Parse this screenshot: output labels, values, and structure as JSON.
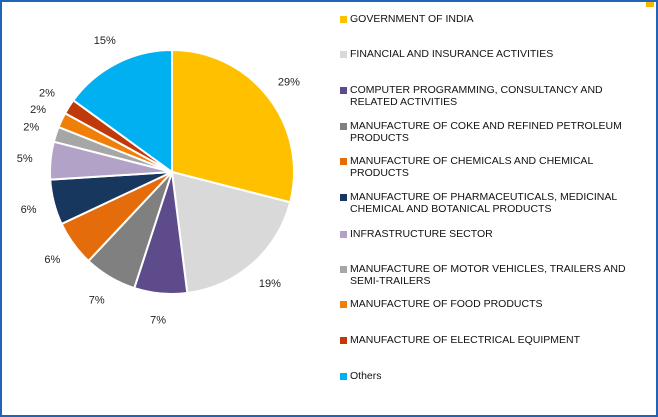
{
  "chart_data": {
    "type": "pie",
    "slices": [
      {
        "label": "GOVERNMENT OF INDIA",
        "value": 29,
        "text": "29%",
        "color": "#ffc000"
      },
      {
        "label": "FINANCIAL AND INSURANCE ACTIVITIES",
        "value": 19,
        "text": "19%",
        "color": "#d9d9d9"
      },
      {
        "label": "COMPUTER PROGRAMMING, CONSULTANCY AND RELATED ACTIVITIES",
        "value": 7,
        "text": "7%",
        "color": "#5e4b8b"
      },
      {
        "label": "MANUFACTURE OF COKE AND REFINED PETROLEUM PRODUCTS",
        "value": 7,
        "text": "7%",
        "color": "#808080"
      },
      {
        "label": "MANUFACTURE OF CHEMICALS AND CHEMICAL PRODUCTS",
        "value": 6,
        "text": "6%",
        "color": "#e46c0a"
      },
      {
        "label": "MANUFACTURE OF PHARMACEUTICALS, MEDICINAL CHEMICAL AND BOTANICAL PRODUCTS",
        "value": 6,
        "text": "6%",
        "color": "#17375e"
      },
      {
        "label": "INFRASTRUCTURE SECTOR",
        "value": 5,
        "text": "5%",
        "color": "#b3a2c7"
      },
      {
        "label": "MANUFACTURE OF MOTOR VEHICLES, TRAILERS AND SEMI-TRAILERS",
        "value": 2,
        "text": "2%",
        "color": "#a6a6a6"
      },
      {
        "label": "MANUFACTURE OF FOOD PRODUCTS",
        "value": 2,
        "text": "2%",
        "color": "#f07f09"
      },
      {
        "label": "MANUFACTURE OF ELECTRICAL EQUIPMENT",
        "value": 2,
        "text": "2%",
        "color": "#c0390b"
      },
      {
        "label": "Others",
        "value": 15,
        "text": "15%",
        "color": "#00b0f0"
      }
    ],
    "legend_position": "right"
  },
  "legend_lines": [
    [
      "GOVERNMENT OF INDIA"
    ],
    [
      "FINANCIAL AND INSURANCE ACTIVITIES"
    ],
    [
      "COMPUTER PROGRAMMING, CONSULTANCY AND",
      "RELATED ACTIVITIES"
    ],
    [
      "MANUFACTURE OF COKE AND REFINED PETROLEUM",
      "PRODUCTS"
    ],
    [
      "MANUFACTURE OF CHEMICALS AND CHEMICAL",
      "PRODUCTS"
    ],
    [
      "MANUFACTURE OF PHARMACEUTICALS, MEDICINAL",
      "CHEMICAL AND BOTANICAL PRODUCTS"
    ],
    [
      "INFRASTRUCTURE SECTOR"
    ],
    [
      "MANUFACTURE OF MOTOR VEHICLES, TRAILERS AND",
      "SEMI-TRAILERS"
    ],
    [
      "MANUFACTURE OF FOOD PRODUCTS"
    ],
    [
      "MANUFACTURE OF ELECTRICAL EQUIPMENT"
    ],
    [
      "Others"
    ]
  ]
}
